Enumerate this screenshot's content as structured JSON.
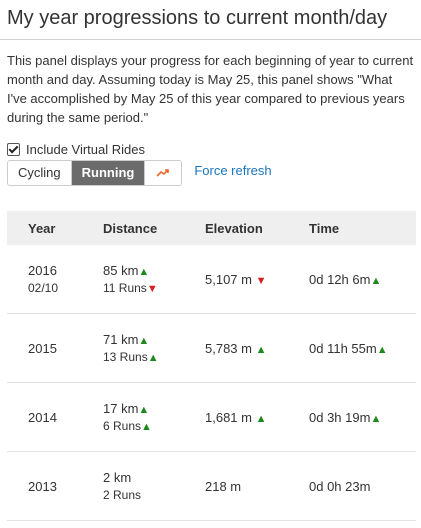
{
  "panel": {
    "title": "My year progressions to current month/day",
    "description": "This panel displays your progress for each beginning of year to current month and day. Assuming today is May 25, this panel shows \"What I've accomplished by May 25 of this year compared to previous years during the same period.\"",
    "include_virtual_label": "Include Virtual Rides",
    "include_virtual_checked": true,
    "tabs": [
      "Cycling",
      "Running"
    ],
    "active_tab": "Running",
    "chart_icon": "trend-chart-icon",
    "force_refresh": "Force refresh"
  },
  "colors": {
    "up": "#1e8a1e",
    "down": "#d42020",
    "link": "#1a75bb",
    "active_tab": "#6b6b6b"
  },
  "table": {
    "headers": {
      "year": "Year",
      "distance": "Distance",
      "elevation": "Elevation",
      "time": "Time"
    },
    "rows": [
      {
        "year": "2016",
        "date": "02/10",
        "distance": "85 km",
        "distance_trend": "up",
        "runs": "11 Runs",
        "runs_trend": "down",
        "elevation": "5,107 m",
        "elevation_trend": "down",
        "time": "0d 12h 6m",
        "time_trend": "up"
      },
      {
        "year": "2015",
        "date": "",
        "distance": "71 km",
        "distance_trend": "up",
        "runs": "13 Runs",
        "runs_trend": "up",
        "elevation": "5,783 m",
        "elevation_trend": "up",
        "time": "0d 11h 55m",
        "time_trend": "up"
      },
      {
        "year": "2014",
        "date": "",
        "distance": "17 km",
        "distance_trend": "up",
        "runs": "6 Runs",
        "runs_trend": "up",
        "elevation": "1,681 m",
        "elevation_trend": "up",
        "time": "0d 3h 19m",
        "time_trend": "up"
      },
      {
        "year": "2013",
        "date": "",
        "distance": "2 km",
        "distance_trend": "",
        "runs": "2 Runs",
        "runs_trend": "",
        "elevation": "218 m",
        "elevation_trend": "",
        "time": "0d 0h 23m",
        "time_trend": ""
      }
    ]
  }
}
